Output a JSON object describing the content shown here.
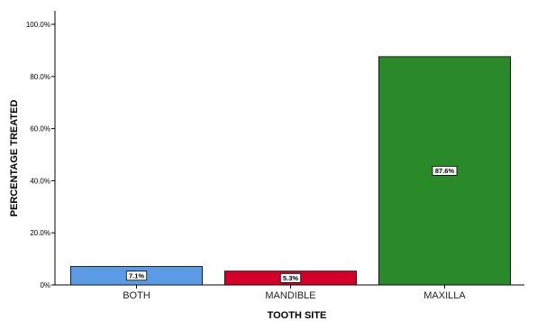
{
  "chart_data": {
    "type": "bar",
    "categories": [
      "BOTH",
      "MANDIBLE",
      "MAXILLA"
    ],
    "values": [
      7.1,
      5.3,
      87.6
    ],
    "data_labels": [
      "7.1%",
      "5.3%",
      "87.6%"
    ],
    "colors": [
      "#5b9be6",
      "#d4002a",
      "#2a8a2a"
    ],
    "xlabel": "TOOTH SITE",
    "ylabel": "PERCENTAGE TREATED",
    "ylim": [
      0,
      100
    ],
    "yticks": [
      0,
      20,
      40,
      60,
      80,
      100
    ],
    "ytick_labels": [
      "0%",
      "20.0%",
      "40.0%",
      "60.0%",
      "80.0%",
      "100.0%"
    ],
    "grid": false,
    "legend": "none"
  }
}
